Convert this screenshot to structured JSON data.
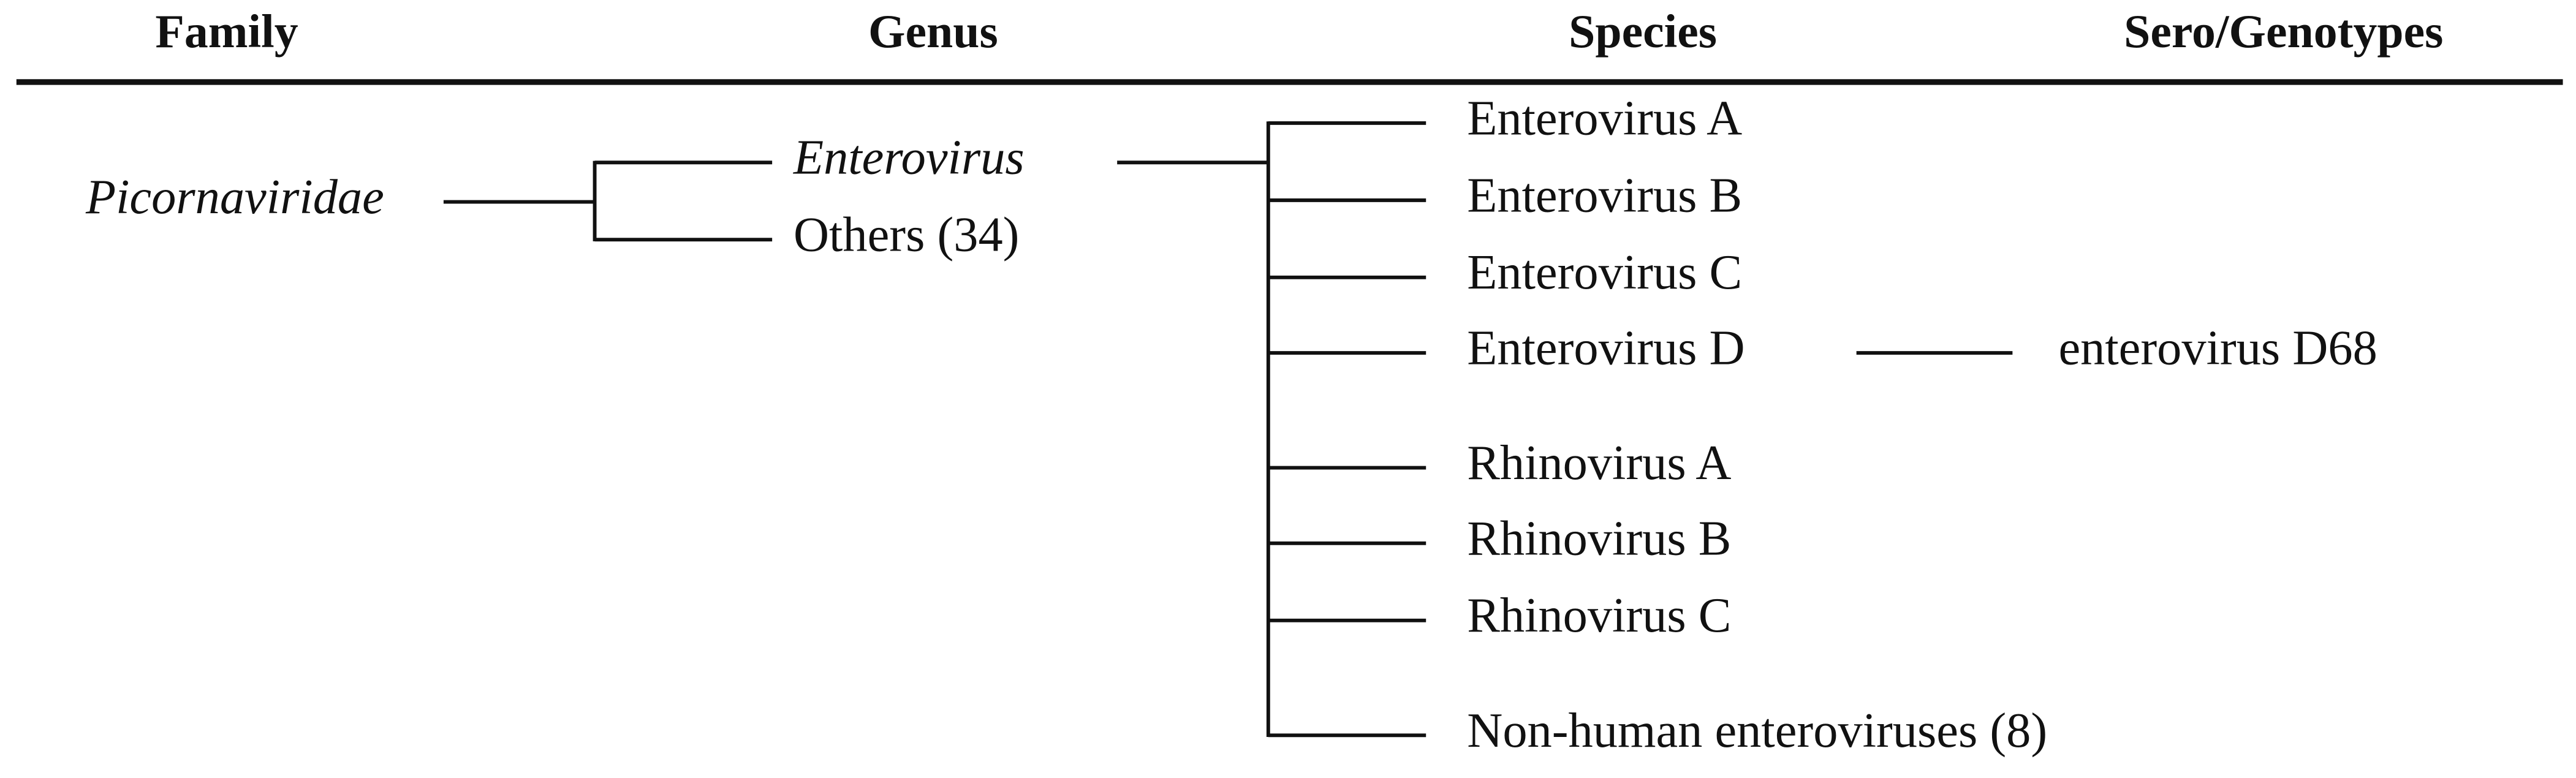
{
  "headers": [
    "Family",
    "Genus",
    "Species",
    "Sero/Genotypes"
  ],
  "family": "Picornaviridae",
  "genera": [
    "Enterovirus",
    "Others (34)"
  ],
  "species": [
    "Enterovirus A",
    "Enterovirus B",
    "Enterovirus C",
    "Enterovirus D",
    "Rhinovirus A",
    "Rhinovirus B",
    "Rhinovirus C",
    "Non-human enteroviruses (8)"
  ],
  "genotype": "enterovirus D68"
}
